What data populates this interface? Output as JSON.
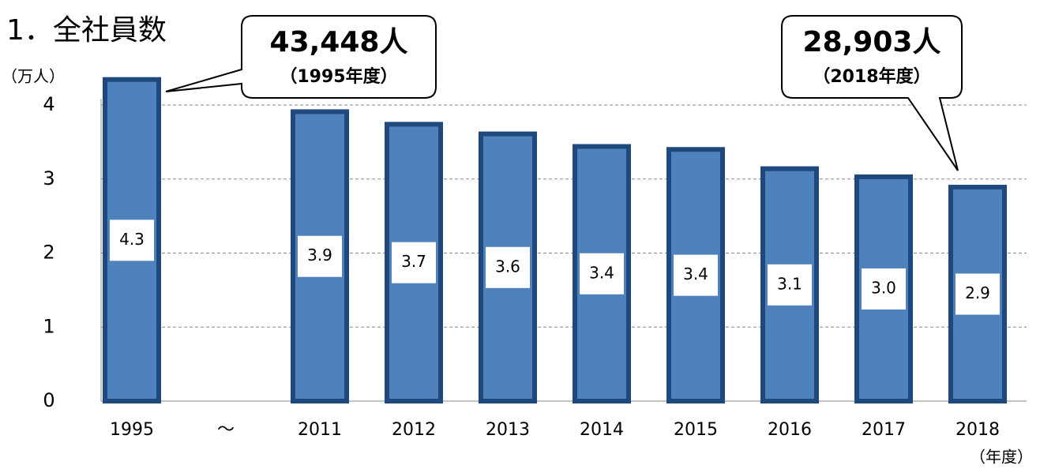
{
  "chart_data": {
    "type": "bar",
    "title": "1．全社員数",
    "y_unit": "（万人）",
    "x_unit": "（年度）",
    "categories": [
      "1995",
      "～",
      "2011",
      "2012",
      "2013",
      "2014",
      "2015",
      "2016",
      "2017",
      "2018"
    ],
    "values": [
      4.3448,
      null,
      3.91,
      3.74,
      3.61,
      3.44,
      3.4,
      3.14,
      3.03,
      2.8903
    ],
    "value_labels": [
      "4.3",
      null,
      "3.9",
      "3.7",
      "3.6",
      "3.4",
      "3.4",
      "3.1",
      "3.0",
      "2.9"
    ],
    "color": "#4f81bd",
    "edge_color": "#1f497d",
    "ylim": [
      0,
      4.1
    ],
    "yticks": [
      0,
      1,
      2,
      3,
      4
    ],
    "grid": true,
    "annotations": [
      {
        "value": "43,448人",
        "note": "（1995年度）"
      },
      {
        "value": "28,903人",
        "note": "（2018年度）"
      }
    ]
  }
}
